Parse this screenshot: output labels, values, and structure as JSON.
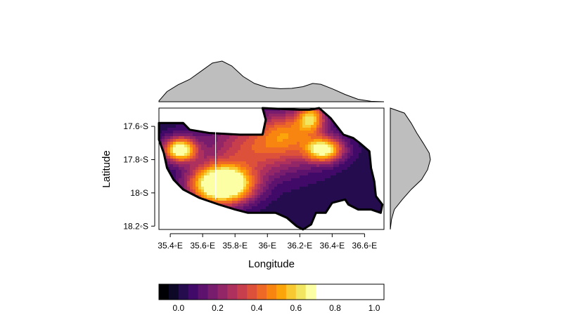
{
  "chart_data": {
    "type": "heatmap",
    "title": "",
    "xlabel": "Longitude",
    "ylabel": "Latitude",
    "xlim": [
      35.33,
      36.72
    ],
    "ylim": [
      -18.22,
      -17.49
    ],
    "x_ticks": [
      {
        "value": 35.4,
        "label": "35.4◦E"
      },
      {
        "value": 35.6,
        "label": "35.6◦E"
      },
      {
        "value": 35.8,
        "label": "35.8◦E"
      },
      {
        "value": 36.0,
        "label": "36◦E"
      },
      {
        "value": 36.2,
        "label": "36.2◦E"
      },
      {
        "value": 36.4,
        "label": "36.4◦E"
      },
      {
        "value": 36.6,
        "label": "36.6◦E"
      }
    ],
    "y_ticks": [
      {
        "value": -17.6,
        "label": "17.6◦S"
      },
      {
        "value": -17.8,
        "label": "17.8◦S"
      },
      {
        "value": -18.0,
        "label": "18◦S"
      },
      {
        "value": -18.2,
        "label": "18.2◦S"
      }
    ],
    "region_outline": [
      [
        35.33,
        -17.58
      ],
      [
        35.48,
        -17.58
      ],
      [
        35.52,
        -17.62
      ],
      [
        35.64,
        -17.64
      ],
      [
        35.83,
        -17.65
      ],
      [
        35.97,
        -17.65
      ],
      [
        35.99,
        -17.56
      ],
      [
        35.97,
        -17.49
      ],
      [
        36.2,
        -17.5
      ],
      [
        36.26,
        -17.5
      ],
      [
        36.32,
        -17.49
      ],
      [
        36.39,
        -17.55
      ],
      [
        36.47,
        -17.65
      ],
      [
        36.53,
        -17.67
      ],
      [
        36.57,
        -17.7
      ],
      [
        36.63,
        -17.75
      ],
      [
        36.64,
        -17.85
      ],
      [
        36.66,
        -17.93
      ],
      [
        36.67,
        -18.02
      ],
      [
        36.71,
        -18.07
      ],
      [
        36.7,
        -18.12
      ],
      [
        36.64,
        -18.1
      ],
      [
        36.56,
        -18.1
      ],
      [
        36.5,
        -18.07
      ],
      [
        36.48,
        -18.04
      ],
      [
        36.4,
        -18.06
      ],
      [
        36.36,
        -18.12
      ],
      [
        36.3,
        -18.12
      ],
      [
        36.27,
        -18.19
      ],
      [
        36.22,
        -18.22
      ],
      [
        36.18,
        -18.2
      ],
      [
        36.12,
        -18.15
      ],
      [
        36.05,
        -18.12
      ],
      [
        35.97,
        -18.12
      ],
      [
        35.88,
        -18.12
      ],
      [
        35.8,
        -18.1
      ],
      [
        35.7,
        -18.07
      ],
      [
        35.58,
        -18.03
      ],
      [
        35.48,
        -17.98
      ],
      [
        35.42,
        -17.92
      ],
      [
        35.38,
        -17.85
      ],
      [
        35.36,
        -17.76
      ],
      [
        35.33,
        -17.68
      ]
    ],
    "hotspots": [
      {
        "lon": 35.72,
        "lat": -17.95,
        "amp": 0.98,
        "sx": 0.13,
        "sy": 0.08
      },
      {
        "lon": 35.46,
        "lat": -17.74,
        "amp": 0.72,
        "sx": 0.07,
        "sy": 0.05
      },
      {
        "lon": 35.98,
        "lat": -17.72,
        "amp": 0.38,
        "sx": 0.24,
        "sy": 0.12
      },
      {
        "lon": 36.35,
        "lat": -17.74,
        "amp": 0.62,
        "sx": 0.08,
        "sy": 0.05
      },
      {
        "lon": 36.27,
        "lat": -17.55,
        "amp": 0.5,
        "sx": 0.06,
        "sy": 0.06
      },
      {
        "lon": 36.12,
        "lat": -17.62,
        "amp": 0.22,
        "sx": 0.1,
        "sy": 0.08
      }
    ],
    "baseline": 0.02,
    "marker_line": {
      "lon": 35.68,
      "lat_from": -17.63,
      "lat_to": -18.04
    },
    "legend": {
      "breaks": [
        -0.1,
        -0.05,
        0.0,
        0.05,
        0.1,
        0.15,
        0.2,
        0.25,
        0.3,
        0.35,
        0.4,
        0.45,
        0.5,
        0.55,
        0.6,
        0.65,
        0.7,
        0.75,
        0.8,
        0.85,
        0.9,
        0.95,
        1.0,
        1.05
      ],
      "tick_values": [
        0.0,
        0.2,
        0.4,
        0.6,
        0.8,
        1.0
      ],
      "tick_labels": [
        "0.0",
        "0.2",
        "0.4",
        "0.6",
        "0.8",
        "1.0"
      ],
      "colors": [
        "#000004",
        "#0c0826",
        "#240c4f",
        "#420a68",
        "#5d126e",
        "#781c6d",
        "#932667",
        "#ae305c",
        "#c73e4c",
        "#dd513a",
        "#ed6925",
        "#f8850f",
        "#fca50a",
        "#f9c932",
        "#f2e661",
        "#fcffa4"
      ]
    },
    "top_marginal": {
      "x": [
        35.33,
        35.38,
        35.45,
        35.52,
        35.6,
        35.66,
        35.72,
        35.78,
        35.85,
        35.92,
        36.0,
        36.08,
        36.15,
        36.22,
        36.28,
        36.33,
        36.4,
        36.48,
        36.56,
        36.64,
        36.72
      ],
      "density": [
        0.02,
        0.25,
        0.42,
        0.55,
        0.78,
        0.95,
        1.0,
        0.88,
        0.62,
        0.45,
        0.35,
        0.32,
        0.33,
        0.37,
        0.45,
        0.43,
        0.32,
        0.18,
        0.06,
        0.01,
        0.0
      ]
    },
    "right_marginal": {
      "y": [
        -17.49,
        -17.52,
        -17.58,
        -17.64,
        -17.7,
        -17.76,
        -17.8,
        -17.86,
        -17.92,
        -17.98,
        -18.04,
        -18.1,
        -18.16,
        -18.22
      ],
      "density": [
        0.0,
        0.35,
        0.52,
        0.66,
        0.82,
        0.97,
        1.0,
        0.93,
        0.78,
        0.52,
        0.3,
        0.1,
        0.03,
        0.0
      ]
    }
  }
}
